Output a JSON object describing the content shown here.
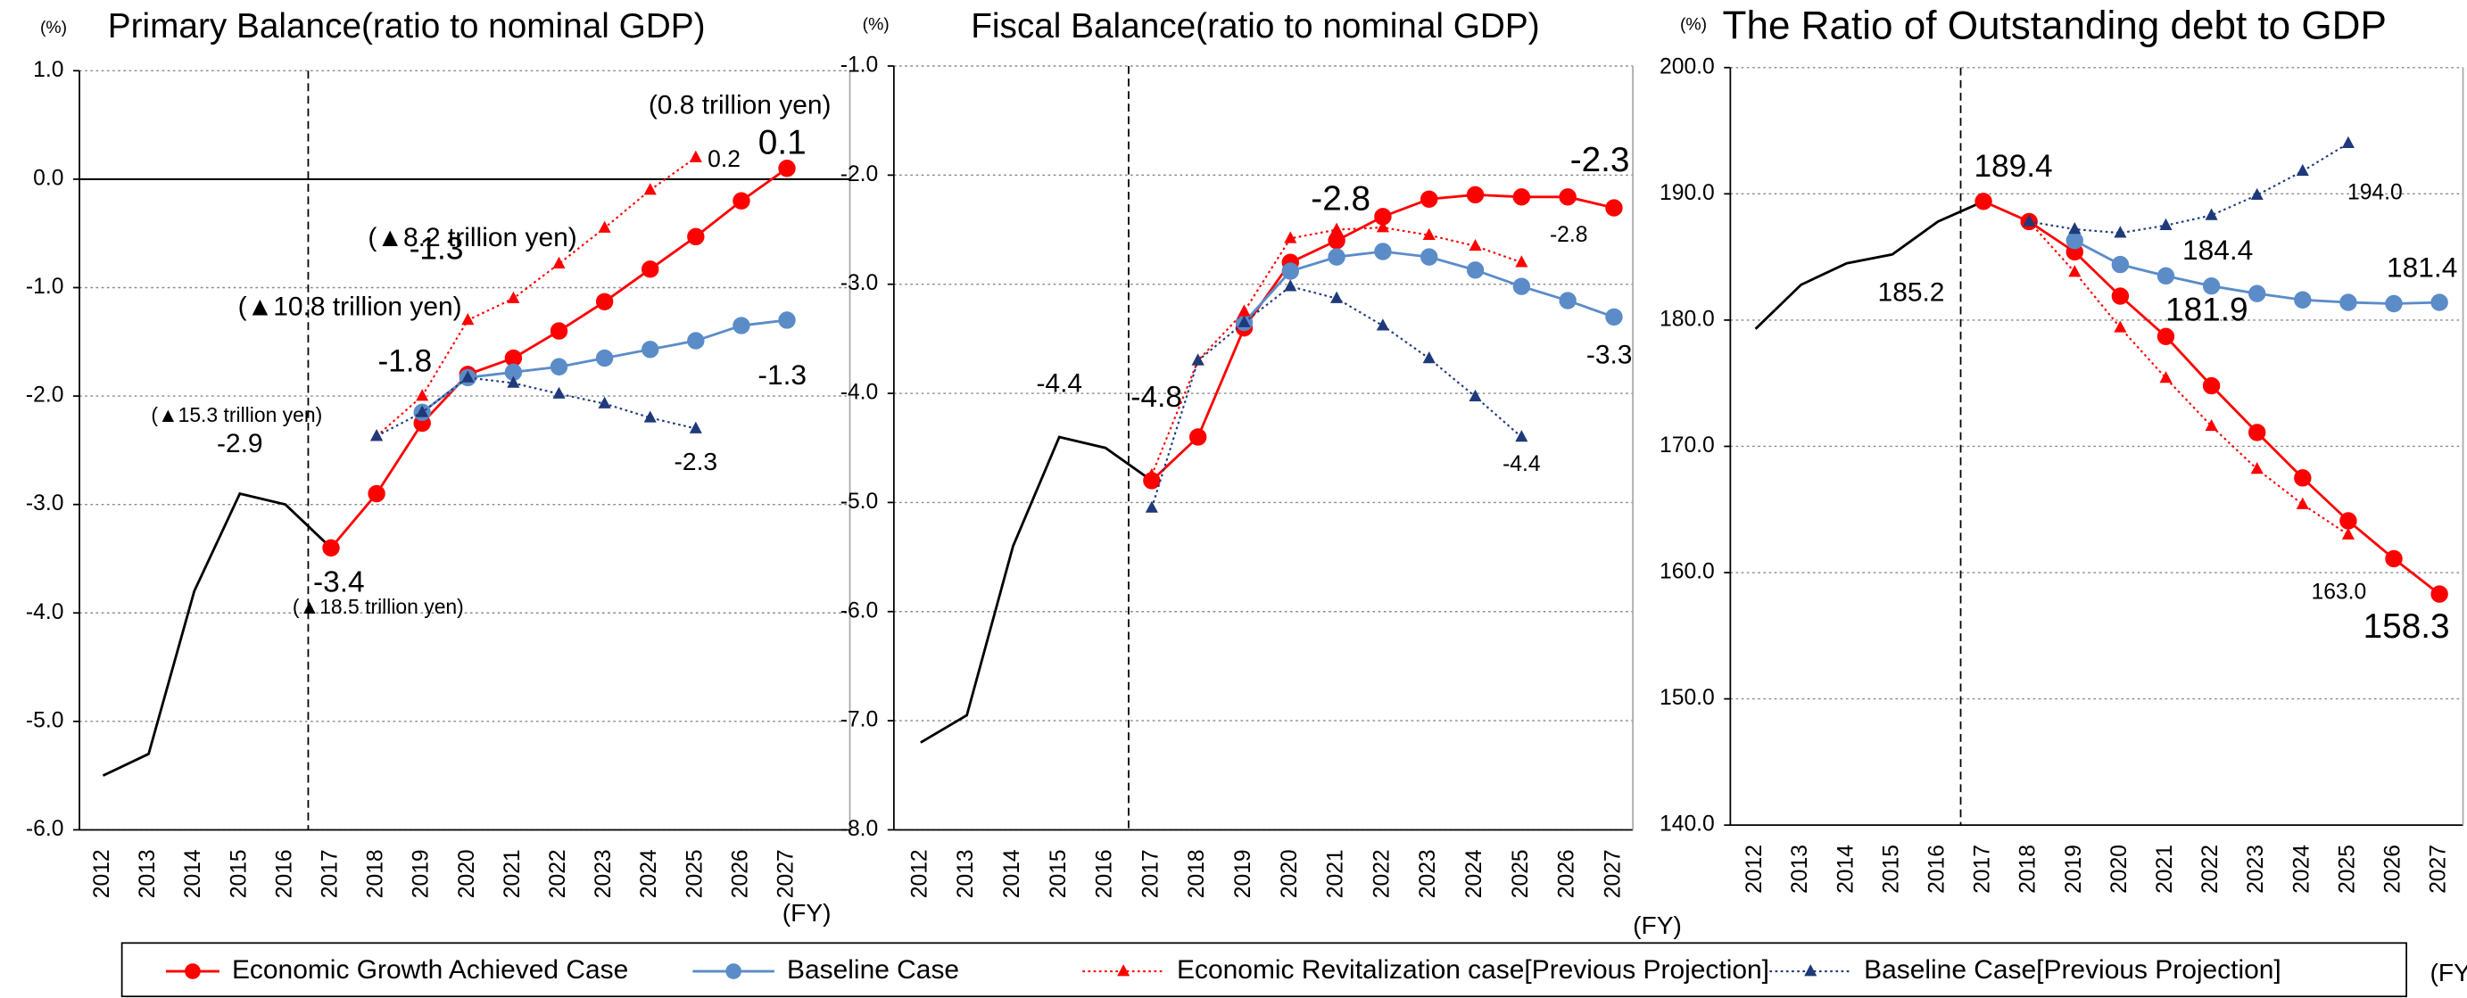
{
  "chart_data": [
    {
      "type": "line",
      "title": "Primary Balance(ratio to nominal GDP)",
      "ylabel": "(%)",
      "xlabel": "(FY)",
      "grid": true,
      "legend": "bottom",
      "categories": [
        "2012",
        "2013",
        "2014",
        "2015",
        "2016",
        "2017",
        "2018",
        "2019",
        "2020",
        "2021",
        "2022",
        "2023",
        "2024",
        "2025",
        "2026",
        "2027"
      ],
      "ylim": [
        -6,
        1
      ],
      "yticks": [
        {
          "value": -6,
          "label": "-6.0"
        },
        {
          "value": -5,
          "label": "-5.0"
        },
        {
          "value": -4,
          "label": "-4.0"
        },
        {
          "value": -3,
          "label": "-3.0"
        },
        {
          "value": -2,
          "label": "-2.0"
        },
        {
          "value": -1,
          "label": "-1.0"
        },
        {
          "value": 0,
          "label": "0.0"
        },
        {
          "value": 1,
          "label": "1.0"
        }
      ],
      "series": [
        {
          "color": "#000000",
          "marker": "none",
          "linestyle": "solid",
          "values": [
            -5.5,
            -5.3,
            -3.8,
            -2.9,
            -3.0,
            -3.4,
            null,
            null,
            null,
            null,
            null,
            null,
            null,
            null,
            null,
            null
          ],
          "value_labels": [
            null,
            null,
            null,
            "-2.9",
            null,
            null,
            null,
            null,
            null,
            null,
            null,
            null,
            null,
            null,
            null,
            null
          ]
        },
        {
          "name": "Economic Growth Achieved Case",
          "color": "#ff0000",
          "marker": "circle",
          "linestyle": "solid",
          "values": [
            null,
            null,
            null,
            null,
            null,
            -3.4,
            -2.9,
            -2.25,
            -1.8,
            -1.65,
            -1.4,
            -1.13,
            -0.83,
            -0.53,
            -0.2,
            0.1
          ],
          "value_labels": [
            null,
            null,
            null,
            null,
            null,
            "-3.4",
            null,
            null,
            "-1.8",
            null,
            null,
            null,
            null,
            null,
            null,
            "0.1"
          ]
        },
        {
          "name": "Baseline Case",
          "color": "#5b8cc8",
          "marker": "circle",
          "linestyle": "solid",
          "values": [
            null,
            null,
            null,
            null,
            null,
            null,
            null,
            -2.15,
            -1.83,
            -1.78,
            -1.73,
            -1.65,
            -1.57,
            -1.49,
            -1.35,
            -1.3
          ],
          "value_labels": [
            null,
            null,
            null,
            null,
            null,
            null,
            null,
            null,
            null,
            null,
            null,
            null,
            null,
            null,
            null,
            "-1.3"
          ]
        },
        {
          "name": "Economic Revitalization case[Previous Projection]",
          "color": "#ff0000",
          "marker": "triangle",
          "linestyle": "dotted",
          "values": [
            null,
            null,
            null,
            null,
            null,
            null,
            -2.37,
            -2.0,
            -1.3,
            -1.1,
            -0.78,
            -0.45,
            -0.1,
            0.2,
            null,
            null
          ],
          "value_labels": [
            null,
            null,
            null,
            null,
            null,
            null,
            null,
            null,
            "-1.3",
            null,
            null,
            null,
            null,
            "0.2",
            null,
            null
          ]
        },
        {
          "name": "Baseline Case[Previous Projection]",
          "color": "#1f3a7a",
          "marker": "triangle",
          "linestyle": "dotted",
          "values": [
            null,
            null,
            null,
            null,
            null,
            null,
            -2.37,
            -2.15,
            -1.83,
            -1.88,
            -1.98,
            -2.07,
            -2.2,
            -2.3,
            null,
            null
          ],
          "value_labels": [
            null,
            null,
            null,
            null,
            null,
            null,
            null,
            null,
            null,
            null,
            null,
            null,
            null,
            "-2.3",
            null,
            null
          ]
        }
      ],
      "annotations": [
        {
          "text": "(0.8 trillion yen)",
          "color": "#ff0000"
        },
        {
          "text": "(▲8.2 trillion yen)",
          "color": "#ff0000"
        },
        {
          "text": "(▲10.8 trillion yen)",
          "color": "#ff0000"
        },
        {
          "text": "(▲15.3 trillion yen)",
          "color": "#000000"
        },
        {
          "text": "(▲18.5 trillion yen)",
          "color": "#ff0000"
        }
      ]
    },
    {
      "type": "line",
      "title": "Fiscal Balance(ratio to nominal GDP)",
      "ylabel": "(%)",
      "xlabel": "(FY)",
      "grid": true,
      "categories": [
        "2012",
        "2013",
        "2014",
        "2015",
        "2016",
        "2017",
        "2018",
        "2019",
        "2020",
        "2021",
        "2022",
        "2023",
        "2024",
        "2025",
        "2026",
        "2027"
      ],
      "ylim": [
        -8,
        -1
      ],
      "yticks": [
        {
          "value": -8,
          "label": "-8.0"
        },
        {
          "value": -7,
          "label": "-7.0"
        },
        {
          "value": -6,
          "label": "-6.0"
        },
        {
          "value": -5,
          "label": "-5.0"
        },
        {
          "value": -4,
          "label": "-4.0"
        },
        {
          "value": -3,
          "label": "-3.0"
        },
        {
          "value": -2,
          "label": "-2.0"
        },
        {
          "value": -1,
          "label": "-1.0"
        }
      ],
      "series": [
        {
          "color": "#000000",
          "marker": "none",
          "linestyle": "solid",
          "values": [
            -7.2,
            -6.95,
            -5.4,
            -4.4,
            -4.5,
            -4.8,
            null,
            null,
            null,
            null,
            null,
            null,
            null,
            null,
            null,
            null
          ],
          "value_labels": [
            null,
            null,
            null,
            "-4.4",
            null,
            null,
            null,
            null,
            null,
            null,
            null,
            null,
            null,
            null,
            null,
            null
          ]
        },
        {
          "color": "#ff0000",
          "marker": "circle",
          "linestyle": "solid",
          "values": [
            null,
            null,
            null,
            null,
            null,
            -4.8,
            -4.4,
            -3.4,
            -2.8,
            -2.6,
            -2.38,
            -2.22,
            -2.18,
            -2.2,
            -2.2,
            -2.3
          ],
          "value_labels": [
            null,
            null,
            null,
            null,
            null,
            "-4.8",
            null,
            null,
            "-2.8",
            null,
            null,
            null,
            null,
            null,
            null,
            "-2.3"
          ]
        },
        {
          "color": "#5b8cc8",
          "marker": "circle",
          "linestyle": "solid",
          "values": [
            null,
            null,
            null,
            null,
            null,
            null,
            null,
            -3.35,
            -2.88,
            -2.75,
            -2.7,
            -2.75,
            -2.87,
            -3.02,
            -3.15,
            -3.3
          ],
          "value_labels": [
            null,
            null,
            null,
            null,
            null,
            null,
            null,
            null,
            null,
            null,
            null,
            null,
            null,
            null,
            null,
            "-3.3"
          ]
        },
        {
          "color": "#ff0000",
          "marker": "triangle",
          "linestyle": "dotted",
          "values": [
            null,
            null,
            null,
            null,
            null,
            -4.75,
            -3.7,
            -3.25,
            -2.58,
            -2.5,
            -2.48,
            -2.55,
            -2.65,
            -2.8,
            null,
            null
          ],
          "value_labels": [
            null,
            null,
            null,
            null,
            null,
            null,
            null,
            null,
            null,
            null,
            null,
            null,
            null,
            "-2.8",
            null,
            null
          ]
        },
        {
          "color": "#1f3a7a",
          "marker": "triangle",
          "linestyle": "dotted",
          "values": [
            null,
            null,
            null,
            null,
            null,
            -5.05,
            -3.7,
            -3.35,
            -3.02,
            -3.13,
            -3.38,
            -3.68,
            -4.03,
            -4.4,
            null,
            null
          ],
          "value_labels": [
            null,
            null,
            null,
            null,
            null,
            null,
            null,
            null,
            null,
            null,
            null,
            null,
            null,
            "-4.4",
            null,
            null
          ]
        }
      ]
    },
    {
      "type": "line",
      "title": "The Ratio of Outstanding debt to GDP",
      "ylabel": "(%)",
      "xlabel": "(FY)",
      "grid": true,
      "categories": [
        "2012",
        "2013",
        "2014",
        "2015",
        "2016",
        "2017",
        "2018",
        "2019",
        "2020",
        "2021",
        "2022",
        "2023",
        "2024",
        "2025",
        "2026",
        "2027"
      ],
      "ylim": [
        140,
        200
      ],
      "yticks": [
        {
          "value": 140,
          "label": "140.0"
        },
        {
          "value": 150,
          "label": "150.0"
        },
        {
          "value": 160,
          "label": "160.0"
        },
        {
          "value": 170,
          "label": "170.0"
        },
        {
          "value": 180,
          "label": "180.0"
        },
        {
          "value": 190,
          "label": "190.0"
        },
        {
          "value": 200,
          "label": "200.0"
        }
      ],
      "series": [
        {
          "color": "#000000",
          "marker": "none",
          "linestyle": "solid",
          "values": [
            179.3,
            182.8,
            184.5,
            185.2,
            187.8,
            189.4,
            null,
            null,
            null,
            null,
            null,
            null,
            null,
            null,
            null,
            null
          ],
          "value_labels": [
            null,
            null,
            null,
            "185.2",
            null,
            null,
            null,
            null,
            null,
            null,
            null,
            null,
            null,
            null,
            null,
            null
          ]
        },
        {
          "color": "#ff0000",
          "marker": "circle",
          "linestyle": "solid",
          "values": [
            null,
            null,
            null,
            null,
            null,
            189.4,
            187.8,
            185.4,
            181.9,
            178.7,
            174.8,
            171.1,
            167.5,
            164.1,
            161.1,
            158.3
          ],
          "value_labels": [
            null,
            null,
            null,
            null,
            null,
            "189.4",
            null,
            null,
            "181.9",
            null,
            null,
            null,
            null,
            null,
            null,
            "158.3"
          ]
        },
        {
          "color": "#5b8cc8",
          "marker": "circle",
          "linestyle": "solid",
          "values": [
            null,
            null,
            null,
            null,
            null,
            null,
            null,
            186.3,
            184.4,
            183.5,
            182.7,
            182.1,
            181.6,
            181.4,
            181.3,
            181.4
          ],
          "value_labels": [
            null,
            null,
            null,
            null,
            null,
            null,
            null,
            null,
            "184.4",
            null,
            null,
            null,
            null,
            null,
            null,
            "181.4"
          ]
        },
        {
          "color": "#ff0000",
          "marker": "triangle",
          "linestyle": "dotted",
          "values": [
            null,
            null,
            null,
            null,
            null,
            null,
            187.8,
            183.8,
            179.4,
            175.4,
            171.6,
            168.2,
            165.4,
            163.0,
            null,
            null
          ],
          "value_labels": [
            null,
            null,
            null,
            null,
            null,
            null,
            null,
            null,
            null,
            null,
            null,
            null,
            null,
            "163.0",
            null,
            null
          ]
        },
        {
          "color": "#1f3a7a",
          "marker": "triangle",
          "linestyle": "dotted",
          "values": [
            null,
            null,
            null,
            null,
            null,
            null,
            187.8,
            187.2,
            186.9,
            187.5,
            188.3,
            189.9,
            191.8,
            194.0,
            null,
            null
          ],
          "value_labels": [
            null,
            null,
            null,
            null,
            null,
            null,
            null,
            null,
            null,
            null,
            null,
            null,
            null,
            "194.0",
            null,
            null
          ]
        }
      ]
    }
  ]
}
